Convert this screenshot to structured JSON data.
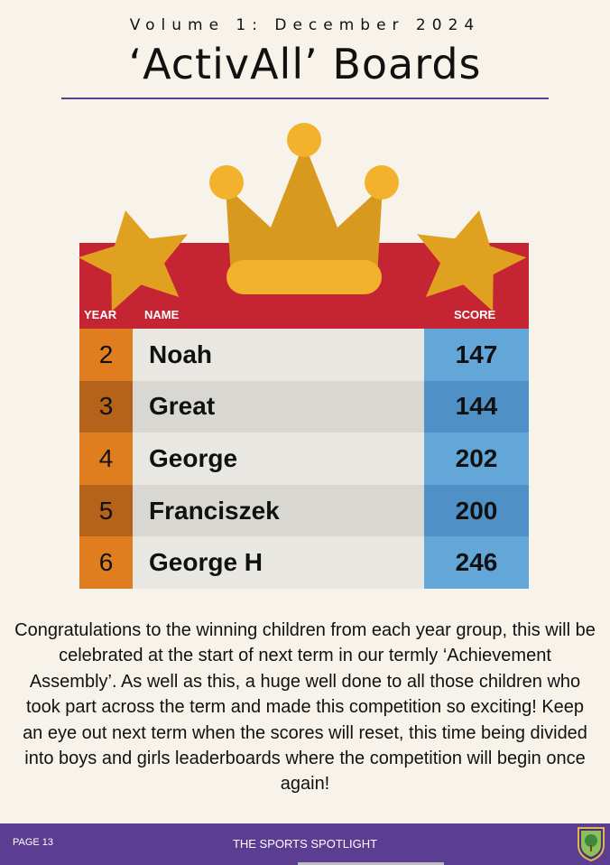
{
  "header": {
    "volume": "Volume 1: December 2024",
    "title": "‘ActivAll’ Boards"
  },
  "leaderboard": {
    "columns": {
      "year": "YEAR",
      "name": "NAME",
      "score": "SCORE"
    },
    "rows": [
      {
        "year": "2",
        "name": "Noah",
        "score": "147"
      },
      {
        "year": "3",
        "name": "Great",
        "score": "144"
      },
      {
        "year": "4",
        "name": "George",
        "score": "202"
      },
      {
        "year": "5",
        "name": "Franciszek",
        "score": "200"
      },
      {
        "year": "6",
        "name": "George H",
        "score": "246"
      }
    ]
  },
  "body": {
    "text": "Congratulations to the winning children from each year group, this will be celebrated at the start of next term in our termly ‘Achievement Assembly’. As well as this, a huge well done to all those children who took part across the term and made this competition so exciting! Keep an eye out next term when the scores will reset, this time being divided into boys and girls leaderboards where the competition will begin once again!"
  },
  "footer": {
    "page": "PAGE 13",
    "title": "THE SPORTS SPOTLIGHT"
  },
  "icons": [
    "crown-icon",
    "star-icon",
    "school-crest-icon"
  ],
  "colors": {
    "banner": "#c52532",
    "year_cell": "#e07e1f",
    "score_cell": "#63a6d8",
    "footer": "#5b3e91",
    "crown": "#d89a1e"
  }
}
